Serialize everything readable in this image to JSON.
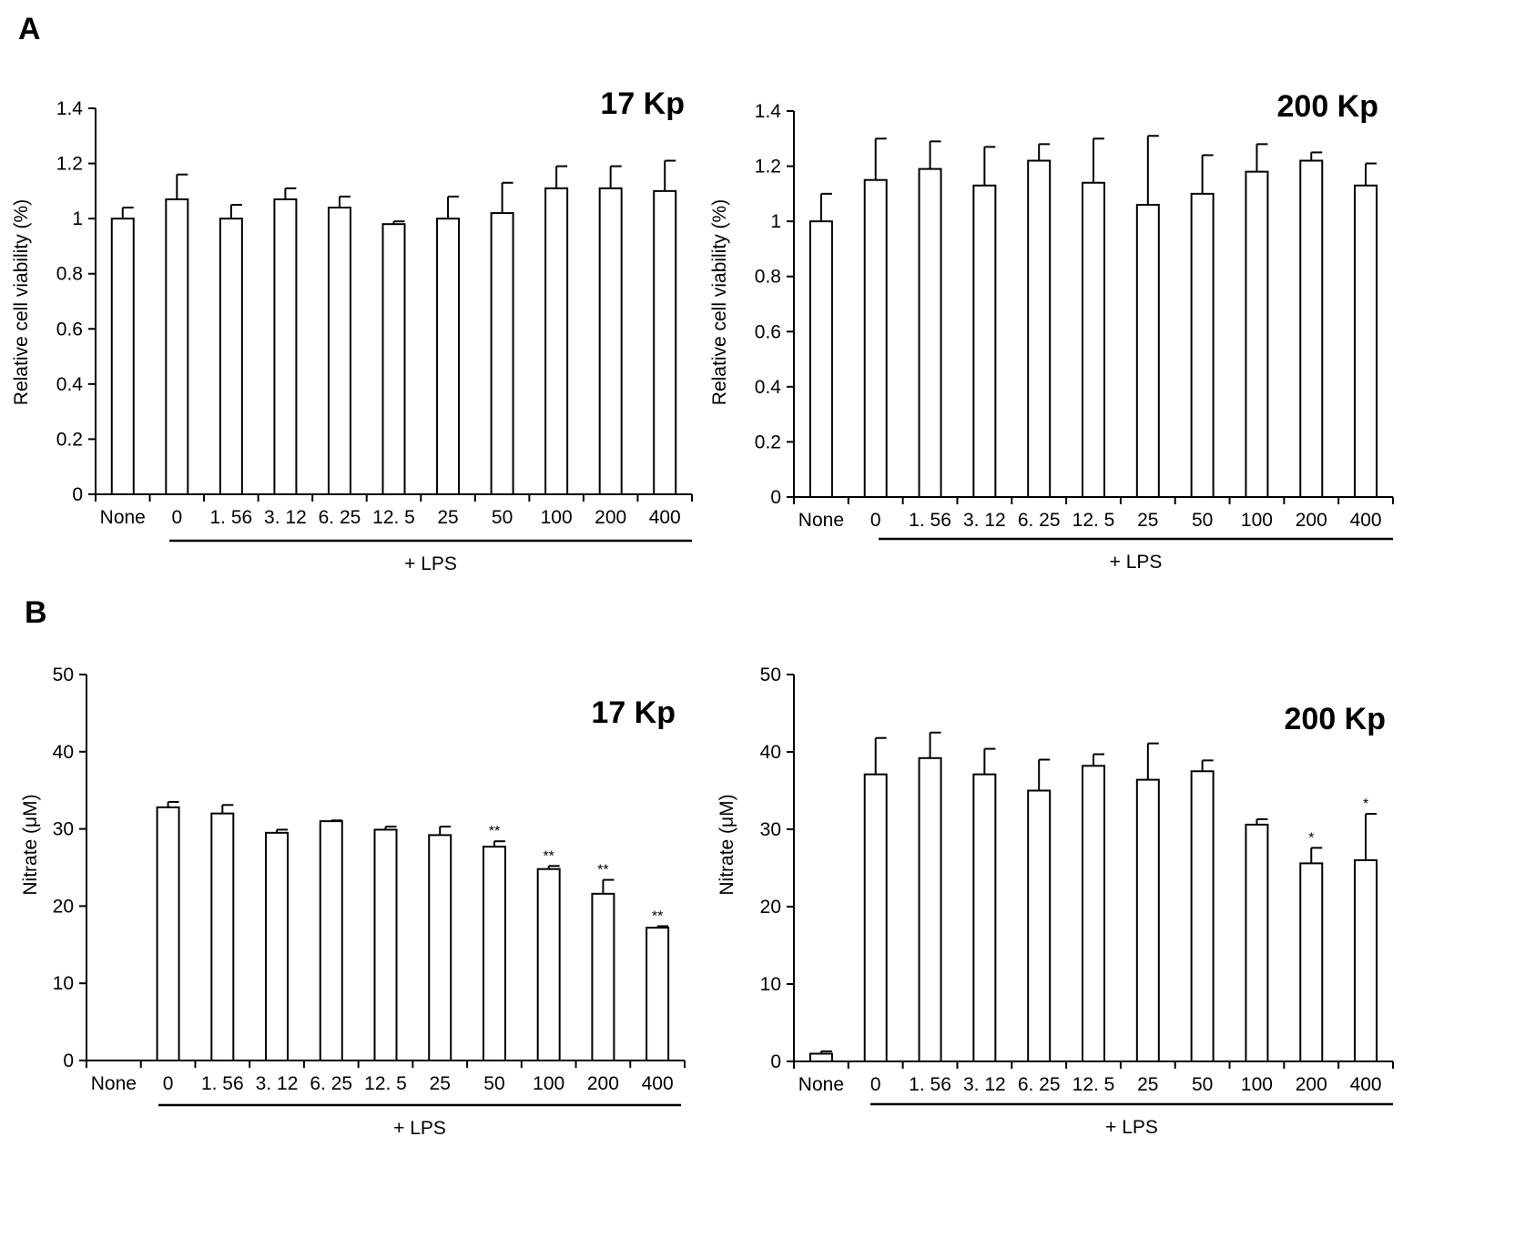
{
  "panels": [
    {
      "label": "A"
    },
    {
      "label": "B"
    }
  ],
  "chart_data": [
    {
      "type": "bar",
      "panel": "A",
      "title": "17 Kp",
      "xlabel": "",
      "ylabel": "Relative cell viability (%)",
      "ylim": [
        0,
        1.4
      ],
      "yticks": [
        "0",
        "0.2",
        "0.4",
        "0.6",
        "0.8",
        "1",
        "1.2",
        "1.4"
      ],
      "categories": [
        "None",
        "0",
        "1. 56",
        "3. 12",
        "6. 25",
        "12. 5",
        "25",
        "50",
        "100",
        "200",
        "400"
      ],
      "values": [
        1.0,
        1.07,
        1.0,
        1.07,
        1.04,
        0.98,
        1.0,
        1.02,
        1.11,
        1.11,
        1.1
      ],
      "errors": [
        0.04,
        0.09,
        0.05,
        0.04,
        0.04,
        0.01,
        0.08,
        0.11,
        0.08,
        0.08,
        0.11
      ],
      "annotations": [
        "",
        "",
        "",
        "",
        "",
        "",
        "",
        "",
        "",
        "",
        ""
      ],
      "group_label": "+ LPS",
      "grid": false,
      "legend": "none"
    },
    {
      "type": "bar",
      "panel": "A",
      "title": "200 Kp",
      "xlabel": "",
      "ylabel": "Relative cell viability (%)",
      "ylim": [
        0,
        1.4
      ],
      "yticks": [
        "0",
        "0.2",
        "0.4",
        "0.6",
        "0.8",
        "1",
        "1.2",
        "1.4"
      ],
      "categories": [
        "None",
        "0",
        "1. 56",
        "3. 12",
        "6. 25",
        "12. 5",
        "25",
        "50",
        "100",
        "200",
        "400"
      ],
      "values": [
        1.0,
        1.15,
        1.19,
        1.13,
        1.22,
        1.14,
        1.06,
        1.1,
        1.18,
        1.22,
        1.13
      ],
      "errors": [
        0.1,
        0.15,
        0.1,
        0.14,
        0.06,
        0.16,
        0.25,
        0.14,
        0.1,
        0.03,
        0.08
      ],
      "annotations": [
        "",
        "",
        "",
        "",
        "",
        "",
        "",
        "",
        "",
        "",
        ""
      ],
      "group_label": "+ LPS",
      "grid": false,
      "legend": "none"
    },
    {
      "type": "bar",
      "panel": "B",
      "title": "17 Kp",
      "xlabel": "",
      "ylabel": "Nitrate (μM)",
      "ylim": [
        0,
        50
      ],
      "yticks": [
        "0",
        "10",
        "20",
        "30",
        "40",
        "50"
      ],
      "categories": [
        "None",
        "0",
        "1. 56",
        "3. 12",
        "6. 25",
        "12. 5",
        "25",
        "50",
        "100",
        "200",
        "400"
      ],
      "values": [
        0,
        32.8,
        32.0,
        29.5,
        31.0,
        29.9,
        29.2,
        27.7,
        24.8,
        21.6,
        17.2
      ],
      "errors": [
        0,
        0.7,
        1.1,
        0.4,
        0.1,
        0.4,
        1.1,
        0.7,
        0.4,
        1.8,
        0.2
      ],
      "annotations": [
        "",
        "",
        "",
        "",
        "",
        "",
        "",
        "**",
        "**",
        "**",
        "**"
      ],
      "group_label": "+ LPS",
      "grid": false,
      "legend": "none"
    },
    {
      "type": "bar",
      "panel": "B",
      "title": "200 Kp",
      "xlabel": "",
      "ylabel": "Nitrate (μM)",
      "ylim": [
        0,
        50
      ],
      "yticks": [
        "0",
        "10",
        "20",
        "30",
        "40",
        "50"
      ],
      "categories": [
        "None",
        "0",
        "1. 56",
        "3. 12",
        "6. 25",
        "12. 5",
        "25",
        "50",
        "100",
        "200",
        "400"
      ],
      "values": [
        1.0,
        37.1,
        39.2,
        37.1,
        35.0,
        38.2,
        36.4,
        37.5,
        30.6,
        25.6,
        26.0
      ],
      "errors": [
        0.3,
        4.7,
        3.3,
        3.3,
        4.0,
        1.5,
        4.7,
        1.4,
        0.7,
        2.0,
        6.0
      ],
      "annotations": [
        "",
        "",
        "",
        "",
        "",
        "",
        "",
        "",
        "",
        "*",
        "*"
      ],
      "group_label": "+ LPS",
      "grid": false,
      "legend": "none"
    }
  ]
}
